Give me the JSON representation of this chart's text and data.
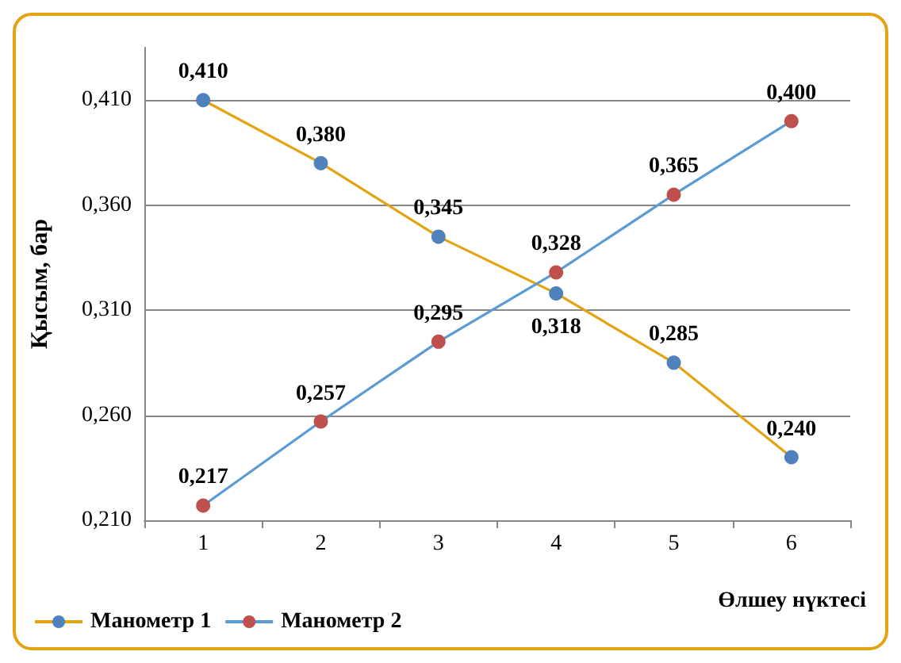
{
  "chart_data": {
    "type": "line",
    "xlabel": "Өлшеу нүктесі",
    "ylabel": "Қысым, бар",
    "categories": [
      "1",
      "2",
      "3",
      "4",
      "5",
      "6"
    ],
    "series": [
      {
        "name": "Манометр 1",
        "color": "#e3a414",
        "colors": [
          "#4f81bd",
          "#4f81bd",
          "#4f81bd",
          "#4f81bd",
          "#4f81bd",
          "#4f81bd"
        ],
        "values": [
          0.41,
          0.38,
          0.345,
          0.318,
          0.285,
          0.24
        ],
        "value_labels": [
          "0,410",
          "0,380",
          "0,345",
          "0,318",
          "0,285",
          "0,240"
        ]
      },
      {
        "name": "Манометр 2",
        "color": "#5b9bd5",
        "colors": [
          "#c0504d",
          "#c0504d",
          "#c0504d",
          "#c0504d",
          "#c0504d",
          "#c0504d"
        ],
        "values": [
          0.217,
          0.257,
          0.295,
          0.328,
          0.365,
          0.4
        ],
        "value_labels": [
          "0,217",
          "0,257",
          "0,295",
          "0,328",
          "0,365",
          "0,400"
        ]
      }
    ],
    "ylim": [
      0.21,
      0.435
    ],
    "yticks": [
      {
        "value": 0.21,
        "label": "0,210"
      },
      {
        "value": 0.26,
        "label": "0,260"
      },
      {
        "value": 0.31,
        "label": "0,310"
      },
      {
        "value": 0.36,
        "label": "0,360"
      },
      {
        "value": 0.41,
        "label": "0,410"
      }
    ],
    "grid": "y",
    "legend": "bottom left",
    "marker": "circle",
    "line_style": "solid"
  }
}
